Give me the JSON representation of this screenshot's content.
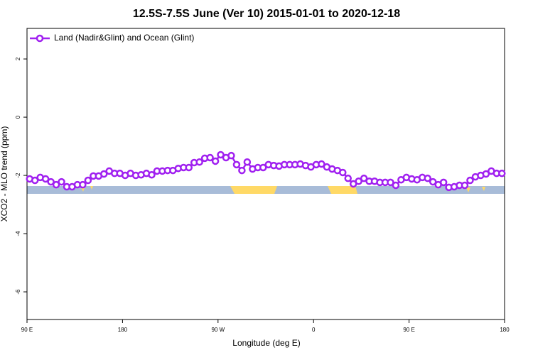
{
  "chart_data": {
    "type": "line",
    "title": "12.5S-7.5S June (Ver 10)   2015-01-01 to 2020-12-18",
    "xlabel": "Longitude (deg E)",
    "ylabel": "XCO2 - MLO trend (ppm)",
    "xlim": [
      90,
      540
    ],
    "ylim": [
      -6.95,
      3.05
    ],
    "xticks": [
      {
        "value": 90,
        "label": "90 E"
      },
      180,
      {
        "value": 270,
        "label": "90 W"
      },
      {
        "value": 360,
        "label": "0"
      },
      {
        "value": 450,
        "label": "90 E"
      },
      {
        "value": 540,
        "label": "180"
      }
    ],
    "yticks": [
      2,
      0,
      -2,
      -4,
      -6
    ],
    "legend": "top-left",
    "x": [
      92.5,
      97.5,
      102.5,
      107.5,
      112.5,
      117.5,
      122.5,
      127.5,
      132.5,
      137.5,
      142.5,
      147.5,
      152.5,
      157.5,
      162.5,
      167.5,
      172.5,
      177.5,
      182.5,
      187.5,
      192.5,
      197.5,
      202.5,
      207.5,
      212.5,
      217.5,
      222.5,
      227.5,
      232.5,
      237.5,
      242.5,
      247.5,
      252.5,
      257.5,
      262.5,
      267.5,
      272.5,
      277.5,
      282.5,
      287.5,
      292.5,
      297.5,
      302.5,
      307.5,
      312.5,
      317.5,
      322.5,
      327.5,
      332.5,
      337.5,
      342.5,
      347.5,
      352.5,
      357.5,
      362.5,
      367.5,
      372.5,
      377.5,
      382.5,
      387.5,
      392.5,
      397.5,
      402.5,
      407.5,
      412.5,
      417.5,
      422.5,
      427.5,
      432.5,
      437.5,
      442.5,
      447.5,
      452.5,
      457.5,
      462.5,
      467.5,
      472.5,
      477.5,
      482.5,
      487.5,
      492.5,
      497.5,
      502.5,
      507.5,
      512.5,
      517.5,
      522.5,
      527.5,
      532.5,
      537.5
    ],
    "series": [
      {
        "name": "Land (Nadir&Glint) and Ocean (Glint)",
        "color": "#a020f0",
        "values": [
          -2.12,
          -2.17,
          -2.07,
          -2.12,
          -2.22,
          -2.32,
          -2.22,
          -2.39,
          -2.39,
          -2.32,
          -2.32,
          -2.17,
          -2.02,
          -2.02,
          -1.95,
          -1.85,
          -1.93,
          -1.93,
          -2.0,
          -1.93,
          -2.0,
          -1.98,
          -1.93,
          -1.98,
          -1.85,
          -1.85,
          -1.83,
          -1.83,
          -1.76,
          -1.73,
          -1.73,
          -1.56,
          -1.54,
          -1.41,
          -1.39,
          -1.51,
          -1.29,
          -1.39,
          -1.32,
          -1.63,
          -1.83,
          -1.54,
          -1.78,
          -1.73,
          -1.73,
          -1.63,
          -1.66,
          -1.68,
          -1.63,
          -1.63,
          -1.63,
          -1.61,
          -1.66,
          -1.71,
          -1.63,
          -1.61,
          -1.71,
          -1.78,
          -1.83,
          -1.9,
          -2.1,
          -2.29,
          -2.2,
          -2.1,
          -2.2,
          -2.2,
          -2.24,
          -2.24,
          -2.24,
          -2.34,
          -2.15,
          -2.07,
          -2.12,
          -2.15,
          -2.07,
          -2.1,
          -2.22,
          -2.32,
          -2.24,
          -2.41,
          -2.39,
          -2.34,
          -2.34,
          -2.17,
          -2.05,
          -2.0,
          -1.95,
          -1.85,
          -1.93,
          -1.93
        ]
      }
    ]
  }
}
